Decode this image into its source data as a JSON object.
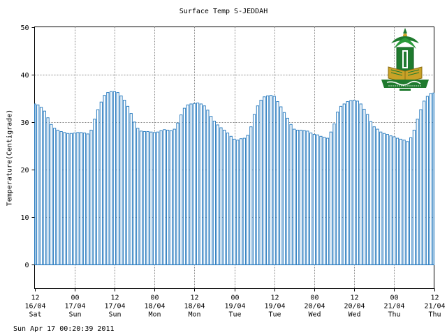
{
  "chart_data": {
    "type": "bar",
    "title": "Surface Temp S-JEDDAH",
    "xlabel": "",
    "ylabel": "Temperature(Centigrade)",
    "ylim": [
      -5,
      50
    ],
    "y_ticks": [
      0,
      10,
      20,
      30,
      40,
      50
    ],
    "grid": true,
    "bar_color": "#2f7fc1",
    "x_ticks": [
      {
        "hour": "12",
        "date": "16/04",
        "day": "Sat"
      },
      {
        "hour": "00",
        "date": "17/04",
        "day": "Sun"
      },
      {
        "hour": "12",
        "date": "17/04",
        "day": "Sun"
      },
      {
        "hour": "00",
        "date": "18/04",
        "day": "Mon"
      },
      {
        "hour": "12",
        "date": "18/04",
        "day": "Mon"
      },
      {
        "hour": "00",
        "date": "19/04",
        "day": "Tue"
      },
      {
        "hour": "12",
        "date": "19/04",
        "day": "Tue"
      },
      {
        "hour": "00",
        "date": "20/04",
        "day": "Wed"
      },
      {
        "hour": "12",
        "date": "20/04",
        "day": "Wed"
      },
      {
        "hour": "00",
        "date": "21/04",
        "day": "Thu"
      },
      {
        "hour": "12",
        "date": "21/04",
        "day": "Thu"
      }
    ],
    "bars_per_tick_interval": 12,
    "values": [
      33.8,
      33.6,
      33.1,
      32.3,
      30.9,
      29.5,
      28.7,
      28.3,
      28.0,
      27.8,
      27.6,
      27.6,
      27.7,
      27.8,
      27.8,
      27.7,
      27.5,
      28.3,
      30.6,
      32.6,
      34.2,
      35.6,
      36.2,
      36.4,
      36.4,
      36.2,
      35.5,
      34.6,
      33.3,
      31.8,
      30.0,
      28.7,
      28.1,
      28.0,
      28.0,
      27.9,
      27.8,
      27.9,
      28.2,
      28.4,
      28.3,
      28.2,
      28.5,
      29.8,
      31.5,
      32.9,
      33.6,
      33.8,
      33.9,
      34.0,
      33.8,
      33.4,
      32.5,
      31.2,
      30.2,
      29.4,
      28.8,
      28.3,
      27.7,
      27.0,
      26.4,
      26.2,
      26.5,
      26.6,
      27.2,
      29.0,
      31.6,
      33.4,
      34.6,
      35.3,
      35.5,
      35.6,
      35.4,
      34.3,
      33.2,
      32.0,
      30.8,
      29.5,
      28.5,
      28.3,
      28.3,
      28.2,
      28.1,
      27.7,
      27.4,
      27.3,
      27.0,
      26.8,
      26.6,
      27.9,
      29.6,
      32.1,
      33.3,
      33.8,
      34.3,
      34.5,
      34.6,
      34.4,
      33.8,
      32.7,
      31.6,
      30.1,
      29.0,
      28.5,
      27.9,
      27.6,
      27.4,
      27.1,
      26.9,
      26.6,
      26.4,
      26.2,
      25.9,
      26.7,
      28.3,
      30.6,
      32.6,
      34.4,
      35.4,
      36.0,
      36.1
    ]
  },
  "footer_timestamp": "Sun Apr 17 00:20:39 2011",
  "logo": {
    "alt": "King Abdulaziz University emblem",
    "colors": {
      "green": "#1f7a2e",
      "gold": "#c9a227",
      "dark": "#0f5a1e"
    },
    "lettering": "جامعة الملك عبدالعزيز"
  }
}
